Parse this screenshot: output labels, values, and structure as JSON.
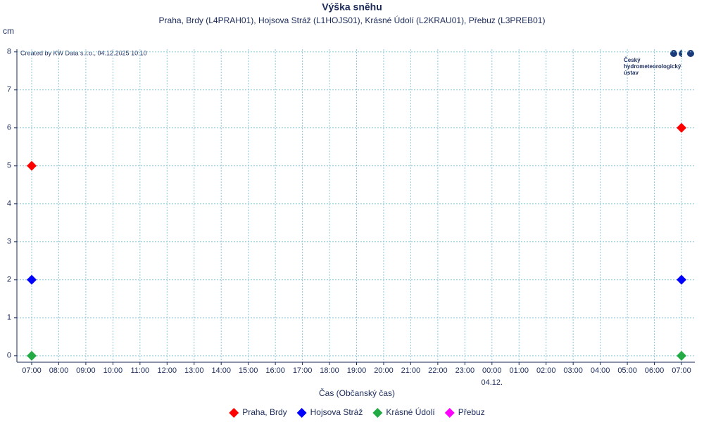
{
  "chart_data": {
    "type": "scatter",
    "title": "Výška sněhu",
    "subtitle": "Praha, Brdy (L4PRAH01), Hojsova Stráž (L1HOJS01), Krásné Údolí (L2KRAU01), Přebuz (L3PREB01)",
    "y_unit": "cm",
    "x_label": "Čas (Občanský čas)",
    "credit": "Created by KW Data s.r.o., 04.12.2025 10:10",
    "logo": [
      "Český",
      "hydrometeorologický",
      "ústav"
    ],
    "date_marker": {
      "label": "04.12.",
      "category_index": 17
    },
    "categories": [
      "07:00",
      "08:00",
      "09:00",
      "10:00",
      "11:00",
      "12:00",
      "13:00",
      "14:00",
      "15:00",
      "16:00",
      "17:00",
      "18:00",
      "19:00",
      "20:00",
      "21:00",
      "22:00",
      "23:00",
      "00:00",
      "01:00",
      "02:00",
      "03:00",
      "04:00",
      "05:00",
      "06:00",
      "07:00"
    ],
    "series": [
      {
        "name": "Praha, Brdy",
        "color": "#ff0000",
        "values": [
          5,
          null,
          null,
          null,
          null,
          null,
          null,
          null,
          null,
          null,
          null,
          null,
          null,
          null,
          null,
          null,
          null,
          null,
          null,
          null,
          null,
          null,
          null,
          null,
          6
        ]
      },
      {
        "name": "Hojsova Stráž",
        "color": "#0000ff",
        "values": [
          2,
          null,
          null,
          null,
          null,
          null,
          null,
          null,
          null,
          null,
          null,
          null,
          null,
          null,
          null,
          null,
          null,
          null,
          null,
          null,
          null,
          null,
          null,
          null,
          2
        ]
      },
      {
        "name": "Krásné Údolí",
        "color": "#22aa44",
        "values": [
          0,
          null,
          null,
          null,
          null,
          null,
          null,
          null,
          null,
          null,
          null,
          null,
          null,
          null,
          null,
          null,
          null,
          null,
          null,
          null,
          null,
          null,
          null,
          null,
          0
        ]
      },
      {
        "name": "Přebuz",
        "color": "#ff00ff",
        "values": [
          null,
          null,
          null,
          null,
          null,
          null,
          null,
          null,
          null,
          null,
          null,
          null,
          null,
          null,
          null,
          null,
          null,
          null,
          null,
          null,
          null,
          null,
          null,
          null,
          null
        ]
      }
    ],
    "ylim": [
      -0.17,
      8.07
    ],
    "yticks": [
      0,
      1,
      2,
      3,
      4,
      5,
      6,
      7,
      8
    ],
    "grid": true,
    "legend": "bottom"
  }
}
